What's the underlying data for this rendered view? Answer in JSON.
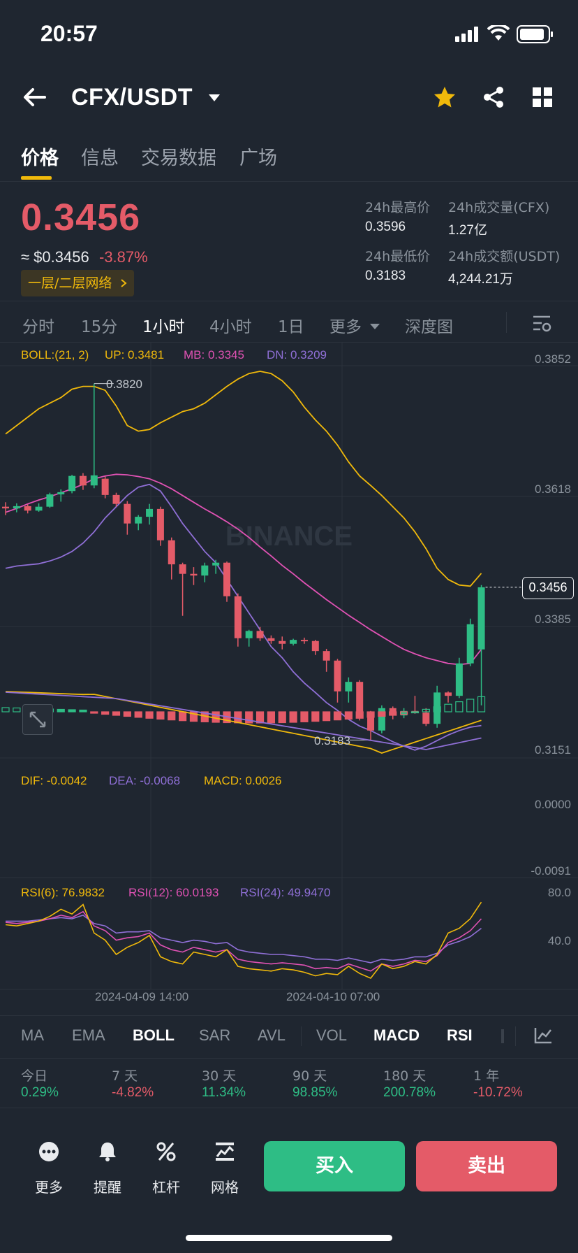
{
  "status_bar": {
    "time": "20:57"
  },
  "header": {
    "pair": "CFX/USDT"
  },
  "tabs": [
    {
      "label": "价格",
      "active": true
    },
    {
      "label": "信息",
      "active": false
    },
    {
      "label": "交易数据",
      "active": false
    },
    {
      "label": "广场",
      "active": false
    }
  ],
  "ticker": {
    "last_price": "0.3456",
    "usd_price": "≈ $0.3456",
    "change_pct": "-3.87%",
    "network_badge": "一层/二层网络",
    "high_label": "24h最高价",
    "high_value": "0.3596",
    "low_label": "24h最低价",
    "low_value": "0.3183",
    "vol_base_label": "24h成交量(CFX)",
    "vol_base_value": "1.27亿",
    "vol_quote_label": "24h成交额(USDT)",
    "vol_quote_value": "4,244.21万"
  },
  "timeframes": [
    {
      "label": "分时",
      "active": false
    },
    {
      "label": "15分",
      "active": false
    },
    {
      "label": "1小时",
      "active": true
    },
    {
      "label": "4小时",
      "active": false
    },
    {
      "label": "1日",
      "active": false
    },
    {
      "label": "更多",
      "active": false
    },
    {
      "label": "深度图",
      "active": false
    }
  ],
  "boll": {
    "label": "BOLL:(21, 2)",
    "up": "UP: 0.3481",
    "mb": "MB: 0.3345",
    "dn": "DN: 0.3209"
  },
  "macd": {
    "dif": "DIF: -0.0042",
    "dea": "DEA: -0.0068",
    "macd": "MACD: 0.0026"
  },
  "rsi": {
    "rsi6": "RSI(6): 76.9832",
    "rsi12": "RSI(12): 60.0193",
    "rsi24": "RSI(24): 49.9470"
  },
  "axes": {
    "price_ticks": [
      "0.3852",
      "0.3618",
      "0.3385",
      "0.3151"
    ],
    "macd_ticks": [
      "0.0000",
      "-0.0091"
    ],
    "rsi_ticks": [
      "80.0",
      "40.0"
    ],
    "time_ticks": [
      "2024-04-09 14:00",
      "2024-04-10 07:00"
    ],
    "high_mark": "0.3820",
    "low_mark": "0.3183",
    "current_price_tag": "0.3456"
  },
  "watermark": "BINANCE",
  "indicator_tabs": [
    {
      "label": "MA",
      "active": false
    },
    {
      "label": "EMA",
      "active": false
    },
    {
      "label": "BOLL",
      "active": true
    },
    {
      "label": "SAR",
      "active": false
    },
    {
      "label": "AVL",
      "active": false
    },
    {
      "label": "VOL",
      "active": false
    },
    {
      "label": "MACD",
      "active": true
    },
    {
      "label": "RSI",
      "active": true
    }
  ],
  "performance": [
    {
      "label": "今日",
      "value": "0.29%",
      "dir": "up"
    },
    {
      "label": "7 天",
      "value": "-4.82%",
      "dir": "down"
    },
    {
      "label": "30 天",
      "value": "11.34%",
      "dir": "up"
    },
    {
      "label": "90 天",
      "value": "98.85%",
      "dir": "up"
    },
    {
      "label": "180 天",
      "value": "200.78%",
      "dir": "up"
    },
    {
      "label": "1 年",
      "value": "-10.72%",
      "dir": "down"
    }
  ],
  "bottom_nav": [
    {
      "label": "更多",
      "icon": "more-dots-icon"
    },
    {
      "label": "提醒",
      "icon": "bell-icon"
    },
    {
      "label": "杠杆",
      "icon": "percent-icon"
    },
    {
      "label": "网格",
      "icon": "grid-bot-icon"
    }
  ],
  "actions": {
    "buy": "买入",
    "sell": "卖出"
  },
  "colors": {
    "up": "#2ebd85",
    "down": "#e45b68",
    "accent": "#f0b90b",
    "up_band": "#f0b90b",
    "mid_band": "#e052b4",
    "dn_band": "#8f6fd6"
  },
  "chart_data": {
    "type": "candlestick",
    "interval": "1小时",
    "y_ticks": [
      0.3852,
      0.3618,
      0.3385,
      0.3151
    ],
    "candles": [
      {
        "o": 0.36,
        "h": 0.3608,
        "l": 0.3585,
        "c": 0.3597
      },
      {
        "o": 0.3597,
        "h": 0.3606,
        "l": 0.359,
        "c": 0.3601
      },
      {
        "o": 0.3601,
        "h": 0.3604,
        "l": 0.3588,
        "c": 0.3593
      },
      {
        "o": 0.3593,
        "h": 0.3606,
        "l": 0.3591,
        "c": 0.36
      },
      {
        "o": 0.36,
        "h": 0.3625,
        "l": 0.3598,
        "c": 0.3622
      },
      {
        "o": 0.3622,
        "h": 0.3631,
        "l": 0.3609,
        "c": 0.3626
      },
      {
        "o": 0.3628,
        "h": 0.3657,
        "l": 0.3624,
        "c": 0.3655
      },
      {
        "o": 0.3655,
        "h": 0.366,
        "l": 0.363,
        "c": 0.3638
      },
      {
        "o": 0.3638,
        "h": 0.382,
        "l": 0.3633,
        "c": 0.3656
      },
      {
        "o": 0.365,
        "h": 0.3654,
        "l": 0.3615,
        "c": 0.3621
      },
      {
        "o": 0.3621,
        "h": 0.3625,
        "l": 0.36,
        "c": 0.3605
      },
      {
        "o": 0.3605,
        "h": 0.361,
        "l": 0.355,
        "c": 0.357
      },
      {
        "o": 0.357,
        "h": 0.3585,
        "l": 0.3558,
        "c": 0.3582
      },
      {
        "o": 0.3582,
        "h": 0.3605,
        "l": 0.3568,
        "c": 0.3596
      },
      {
        "o": 0.3596,
        "h": 0.36,
        "l": 0.353,
        "c": 0.354
      },
      {
        "o": 0.354,
        "h": 0.3545,
        "l": 0.347,
        "c": 0.3497
      },
      {
        "o": 0.3497,
        "h": 0.35,
        "l": 0.3405,
        "c": 0.348
      },
      {
        "o": 0.348,
        "h": 0.3492,
        "l": 0.346,
        "c": 0.3477
      },
      {
        "o": 0.3477,
        "h": 0.35,
        "l": 0.3465,
        "c": 0.3495
      },
      {
        "o": 0.3495,
        "h": 0.3505,
        "l": 0.348,
        "c": 0.35
      },
      {
        "o": 0.35,
        "h": 0.3502,
        "l": 0.343,
        "c": 0.344
      },
      {
        "o": 0.344,
        "h": 0.3445,
        "l": 0.335,
        "c": 0.3365
      },
      {
        "o": 0.3365,
        "h": 0.338,
        "l": 0.335,
        "c": 0.3378
      },
      {
        "o": 0.3378,
        "h": 0.3385,
        "l": 0.336,
        "c": 0.3365
      },
      {
        "o": 0.3365,
        "h": 0.337,
        "l": 0.3355,
        "c": 0.336
      },
      {
        "o": 0.336,
        "h": 0.3368,
        "l": 0.3345,
        "c": 0.3355
      },
      {
        "o": 0.3355,
        "h": 0.3364,
        "l": 0.3352,
        "c": 0.3362
      },
      {
        "o": 0.3362,
        "h": 0.3366,
        "l": 0.3355,
        "c": 0.336
      },
      {
        "o": 0.336,
        "h": 0.3362,
        "l": 0.3335,
        "c": 0.3342
      },
      {
        "o": 0.3342,
        "h": 0.3346,
        "l": 0.3305,
        "c": 0.3325
      },
      {
        "o": 0.3325,
        "h": 0.3328,
        "l": 0.325,
        "c": 0.327
      },
      {
        "o": 0.327,
        "h": 0.3295,
        "l": 0.325,
        "c": 0.3287
      },
      {
        "o": 0.3287,
        "h": 0.329,
        "l": 0.3218,
        "c": 0.323
      },
      {
        "o": 0.323,
        "h": 0.3235,
        "l": 0.3183,
        "c": 0.32
      },
      {
        "o": 0.32,
        "h": 0.3245,
        "l": 0.3195,
        "c": 0.324
      },
      {
        "o": 0.324,
        "h": 0.3243,
        "l": 0.322,
        "c": 0.3227
      },
      {
        "o": 0.3227,
        "h": 0.324,
        "l": 0.3222,
        "c": 0.3235
      },
      {
        "o": 0.3235,
        "h": 0.3262,
        "l": 0.323,
        "c": 0.3232
      },
      {
        "o": 0.3232,
        "h": 0.324,
        "l": 0.3208,
        "c": 0.3212
      },
      {
        "o": 0.3212,
        "h": 0.328,
        "l": 0.3205,
        "c": 0.3268
      },
      {
        "o": 0.3268,
        "h": 0.327,
        "l": 0.325,
        "c": 0.3262
      },
      {
        "o": 0.3262,
        "h": 0.333,
        "l": 0.3258,
        "c": 0.332
      },
      {
        "o": 0.332,
        "h": 0.34,
        "l": 0.3315,
        "c": 0.339
      },
      {
        "o": 0.3345,
        "h": 0.346,
        "l": 0.3245,
        "c": 0.3456
      }
    ],
    "boll_up": [
      0.373,
      0.3745,
      0.376,
      0.3775,
      0.3785,
      0.3795,
      0.381,
      0.3815,
      0.3815,
      0.3808,
      0.378,
      0.3745,
      0.3735,
      0.3738,
      0.375,
      0.376,
      0.377,
      0.3775,
      0.3785,
      0.38,
      0.3815,
      0.3828,
      0.3838,
      0.3842,
      0.3838,
      0.3825,
      0.3805,
      0.3778,
      0.3755,
      0.3735,
      0.371,
      0.368,
      0.3655,
      0.3638,
      0.362,
      0.36,
      0.358,
      0.3555,
      0.3525,
      0.349,
      0.347,
      0.346,
      0.3458,
      0.3481
    ],
    "boll_mb": [
      0.359,
      0.3597,
      0.3605,
      0.3612,
      0.3618,
      0.3625,
      0.3632,
      0.364,
      0.365,
      0.3655,
      0.3658,
      0.3657,
      0.3654,
      0.365,
      0.3642,
      0.3632,
      0.362,
      0.3608,
      0.3596,
      0.3585,
      0.3573,
      0.356,
      0.3545,
      0.3528,
      0.3512,
      0.3495,
      0.348,
      0.3464,
      0.3449,
      0.3434,
      0.342,
      0.3406,
      0.3393,
      0.338,
      0.3368,
      0.3356,
      0.3345,
      0.3337,
      0.333,
      0.3325,
      0.332,
      0.3318,
      0.332,
      0.3345
    ],
    "boll_dn": [
      0.349,
      0.3494,
      0.3496,
      0.3498,
      0.3503,
      0.351,
      0.352,
      0.3535,
      0.3555,
      0.358,
      0.36,
      0.362,
      0.3635,
      0.364,
      0.3628,
      0.36,
      0.357,
      0.3545,
      0.352,
      0.35,
      0.347,
      0.344,
      0.341,
      0.338,
      0.335,
      0.333,
      0.3305,
      0.3285,
      0.3268,
      0.325,
      0.3236,
      0.322,
      0.3208,
      0.32,
      0.319,
      0.318,
      0.3172,
      0.3165,
      0.3172,
      0.3182,
      0.3192,
      0.32,
      0.3206,
      0.3209
    ]
  }
}
